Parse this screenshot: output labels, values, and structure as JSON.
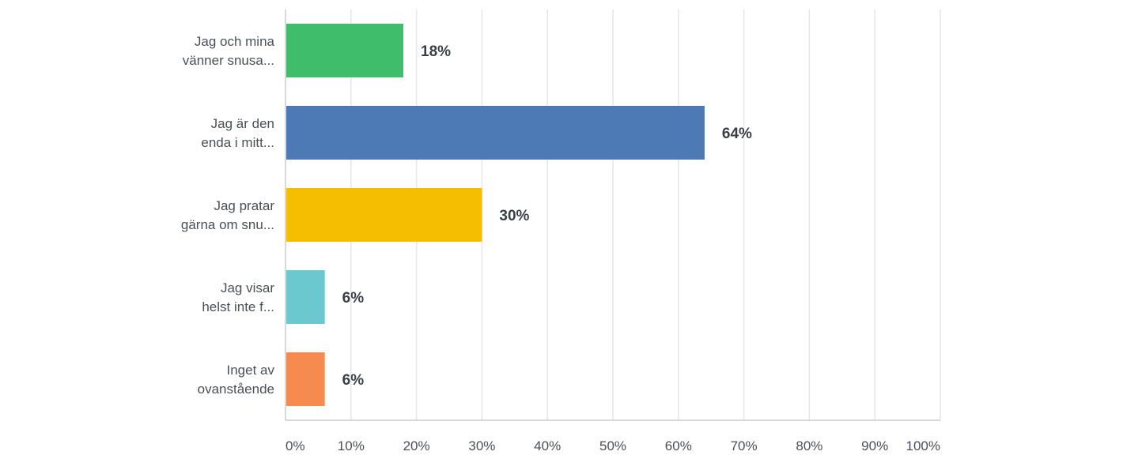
{
  "chart_data": {
    "type": "bar",
    "orientation": "horizontal",
    "categories": [
      [
        "Jag och mina",
        "vänner snusa..."
      ],
      [
        "Jag är den",
        "enda i mitt..."
      ],
      [
        "Jag pratar",
        "gärna om snu..."
      ],
      [
        "Jag visar",
        "helst inte f..."
      ],
      [
        "Inget av",
        "ovanstående"
      ]
    ],
    "values": [
      18,
      64,
      30,
      6,
      6
    ],
    "value_labels": [
      "18%",
      "64%",
      "30%",
      "6%",
      "6%"
    ],
    "colors": [
      "#3fbd6a",
      "#4d79b4",
      "#f5be00",
      "#6cc8cf",
      "#f68b4f"
    ],
    "xlim": [
      0,
      100
    ],
    "ticks": [
      0,
      10,
      20,
      30,
      40,
      50,
      60,
      70,
      80,
      90,
      100
    ],
    "tick_labels": [
      "0%",
      "10%",
      "20%",
      "30%",
      "40%",
      "50%",
      "60%",
      "70%",
      "80%",
      "90%",
      "100%"
    ],
    "grid": true,
    "title": "",
    "xlabel": "",
    "ylabel": ""
  }
}
